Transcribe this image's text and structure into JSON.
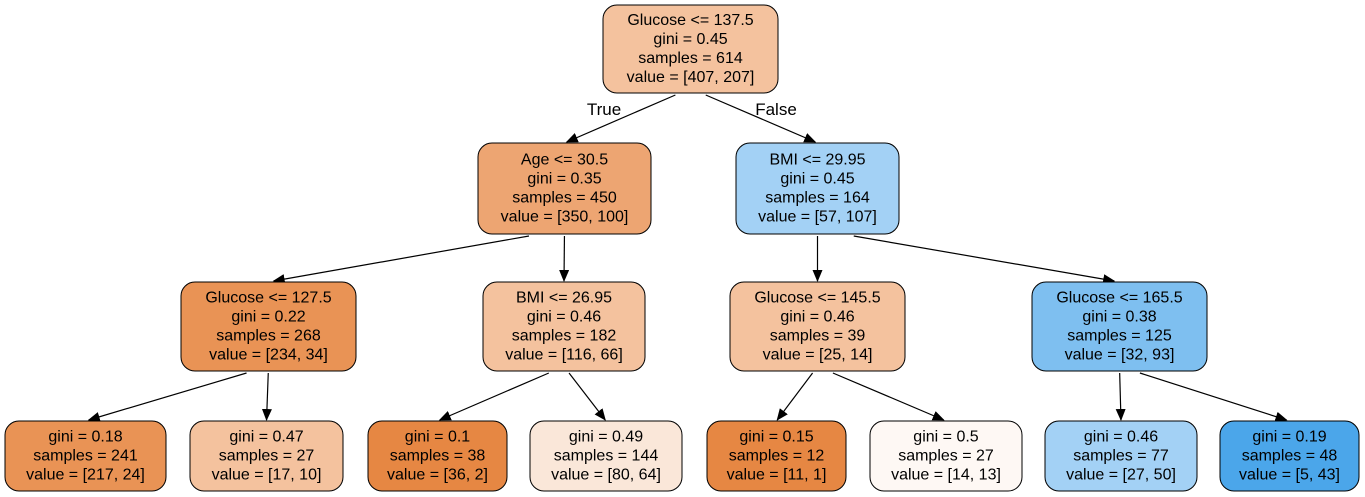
{
  "colors": {
    "border": "#000000",
    "edge": "#000000",
    "orange_light": "#f4c29e",
    "orange_mid": "#eda572",
    "orange_strong": "#e99355",
    "orange_full": "#e68743",
    "orange_pale": "#fae7d9",
    "orange_faint": "#fef8f4",
    "blue_light": "#a3d1f5",
    "blue_mid": "#7ebff0",
    "blue_strong": "#4ba6ea"
  },
  "tree": {
    "nodes": [
      {
        "id": "n0",
        "lines": [
          "Glucose <= 137.5",
          "gini = 0.45",
          "samples = 614",
          "value = [407, 207]"
        ],
        "fill": "orange_light"
      },
      {
        "id": "n1",
        "lines": [
          "Age <= 30.5",
          "gini = 0.35",
          "samples = 450",
          "value = [350, 100]"
        ],
        "fill": "orange_mid"
      },
      {
        "id": "n2",
        "lines": [
          "BMI <= 29.95",
          "gini = 0.45",
          "samples = 164",
          "value = [57, 107]"
        ],
        "fill": "blue_light"
      },
      {
        "id": "n3",
        "lines": [
          "Glucose <= 127.5",
          "gini = 0.22",
          "samples = 268",
          "value = [234, 34]"
        ],
        "fill": "orange_strong"
      },
      {
        "id": "n4",
        "lines": [
          "BMI <= 26.95",
          "gini = 0.46",
          "samples = 182",
          "value = [116, 66]"
        ],
        "fill": "orange_light"
      },
      {
        "id": "n5",
        "lines": [
          "Glucose <= 145.5",
          "gini = 0.46",
          "samples = 39",
          "value = [25, 14]"
        ],
        "fill": "orange_light"
      },
      {
        "id": "n6",
        "lines": [
          "Glucose <= 165.5",
          "gini = 0.38",
          "samples = 125",
          "value = [32, 93]"
        ],
        "fill": "blue_mid"
      },
      {
        "id": "n7",
        "lines": [
          "gini = 0.18",
          "samples = 241",
          "value = [217, 24]"
        ],
        "fill": "orange_strong"
      },
      {
        "id": "n8",
        "lines": [
          "gini = 0.47",
          "samples = 27",
          "value = [17, 10]"
        ],
        "fill": "orange_light"
      },
      {
        "id": "n9",
        "lines": [
          "gini = 0.1",
          "samples = 38",
          "value = [36, 2]"
        ],
        "fill": "orange_full"
      },
      {
        "id": "n10",
        "lines": [
          "gini = 0.49",
          "samples = 144",
          "value = [80, 64]"
        ],
        "fill": "orange_pale"
      },
      {
        "id": "n11",
        "lines": [
          "gini = 0.15",
          "samples = 12",
          "value = [11, 1]"
        ],
        "fill": "orange_full"
      },
      {
        "id": "n12",
        "lines": [
          "gini = 0.5",
          "samples = 27",
          "value = [14, 13]"
        ],
        "fill": "orange_faint"
      },
      {
        "id": "n13",
        "lines": [
          "gini = 0.46",
          "samples = 77",
          "value = [27, 50]"
        ],
        "fill": "blue_light"
      },
      {
        "id": "n14",
        "lines": [
          "gini = 0.19",
          "samples = 48",
          "value = [5, 43]"
        ],
        "fill": "blue_strong"
      }
    ],
    "edges": [
      {
        "from": "n0",
        "to": "n1",
        "label": "True"
      },
      {
        "from": "n0",
        "to": "n2",
        "label": "False"
      },
      {
        "from": "n1",
        "to": "n3",
        "label": ""
      },
      {
        "from": "n1",
        "to": "n4",
        "label": ""
      },
      {
        "from": "n2",
        "to": "n5",
        "label": ""
      },
      {
        "from": "n2",
        "to": "n6",
        "label": ""
      },
      {
        "from": "n3",
        "to": "n7",
        "label": ""
      },
      {
        "from": "n3",
        "to": "n8",
        "label": ""
      },
      {
        "from": "n4",
        "to": "n9",
        "label": ""
      },
      {
        "from": "n4",
        "to": "n10",
        "label": ""
      },
      {
        "from": "n5",
        "to": "n11",
        "label": ""
      },
      {
        "from": "n5",
        "to": "n12",
        "label": ""
      },
      {
        "from": "n6",
        "to": "n13",
        "label": ""
      },
      {
        "from": "n6",
        "to": "n14",
        "label": ""
      }
    ]
  }
}
